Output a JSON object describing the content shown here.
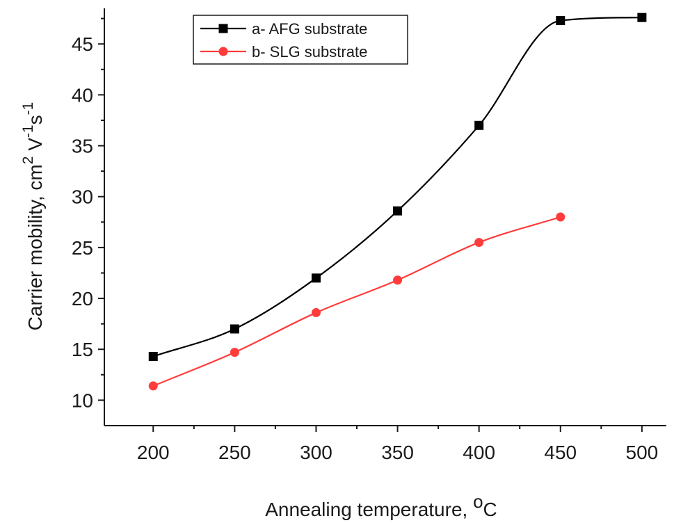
{
  "chart_data": {
    "type": "line",
    "xlabel": "Annealing temperature,",
    "xlabel_unit_sup": "o",
    "xlabel_unit": "C",
    "ylabel_parts": [
      "Carrier mobility, cm",
      "2",
      " V",
      "-1",
      "s",
      "-1"
    ],
    "xlim": [
      170,
      515
    ],
    "ylim": [
      7.5,
      48.5
    ],
    "x_ticks": [
      200,
      250,
      300,
      350,
      400,
      450,
      500
    ],
    "y_ticks": [
      10,
      15,
      20,
      25,
      30,
      35,
      40,
      45
    ],
    "grid": false,
    "legend_position": "top-left",
    "series": [
      {
        "name": "a- AFG substrate",
        "marker": "square",
        "color": "#000000",
        "x": [
          200,
          250,
          300,
          350,
          400,
          450,
          500
        ],
        "y": [
          14.3,
          17.0,
          22.0,
          28.6,
          37.0,
          47.3,
          47.6
        ],
        "fit_curve": true
      },
      {
        "name": "b- SLG substrate",
        "marker": "circle",
        "color": "#ff3b3b",
        "x": [
          200,
          250,
          300,
          350,
          400,
          450
        ],
        "y": [
          11.4,
          14.7,
          18.6,
          21.8,
          25.5,
          28.0
        ],
        "fit_curve": false
      }
    ]
  }
}
